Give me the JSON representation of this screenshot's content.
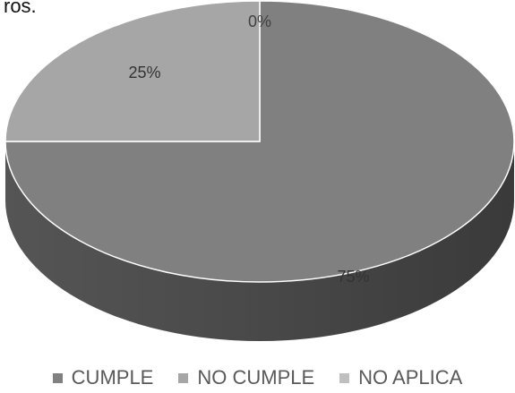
{
  "fragment_text": "ros.",
  "chart_data": {
    "type": "pie",
    "style": "3d",
    "slices": [
      {
        "label": "CUMPLE",
        "value": 75,
        "display": "75%",
        "color": "#808080"
      },
      {
        "label": "NO CUMPLE",
        "value": 25,
        "display": "25%",
        "color": "#a6a6a6"
      },
      {
        "label": "NO APLICA",
        "value": 0,
        "display": "0%",
        "color": "#bfbfbf"
      }
    ],
    "legend_position": "bottom"
  }
}
